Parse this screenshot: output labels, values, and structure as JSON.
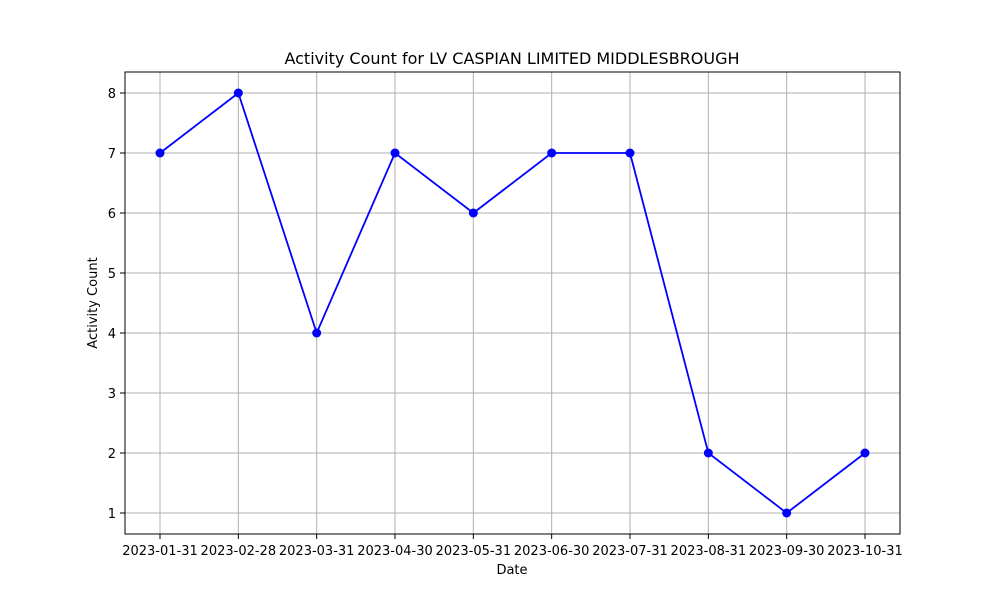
{
  "chart_data": {
    "type": "line",
    "title": "Activity Count for LV CASPIAN LIMITED MIDDLESBROUGH",
    "xlabel": "Date",
    "ylabel": "Activity Count",
    "categories": [
      "2023-01-31",
      "2023-02-28",
      "2023-03-31",
      "2023-04-30",
      "2023-05-31",
      "2023-06-30",
      "2023-07-31",
      "2023-08-31",
      "2023-09-30",
      "2023-10-31"
    ],
    "series": [
      {
        "values": [
          7,
          8,
          4,
          7,
          6,
          7,
          7,
          2,
          1,
          2
        ],
        "color": "#0000ff",
        "marker": "circle"
      }
    ],
    "yticks": [
      1,
      2,
      3,
      4,
      5,
      6,
      7,
      8
    ],
    "ylim": [
      0.65,
      8.35
    ],
    "grid": true,
    "legend": "none"
  }
}
